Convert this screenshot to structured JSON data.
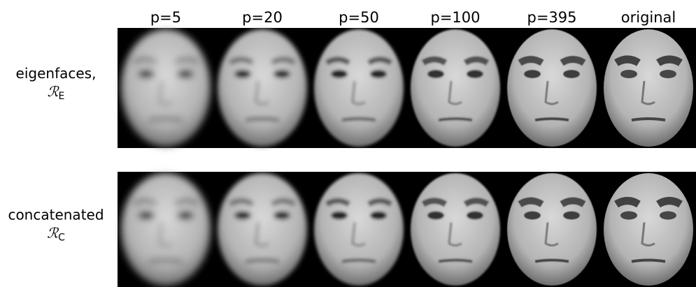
{
  "columns": [
    "p=5",
    "p=20",
    "p=50",
    "p=100",
    "p=395",
    "original"
  ],
  "rows": [
    {
      "label": "eigenfaces,",
      "symbol": "ℛ",
      "subscript": "E"
    },
    {
      "label": "concatenated",
      "symbol": "ℛ",
      "subscript": "C"
    }
  ]
}
